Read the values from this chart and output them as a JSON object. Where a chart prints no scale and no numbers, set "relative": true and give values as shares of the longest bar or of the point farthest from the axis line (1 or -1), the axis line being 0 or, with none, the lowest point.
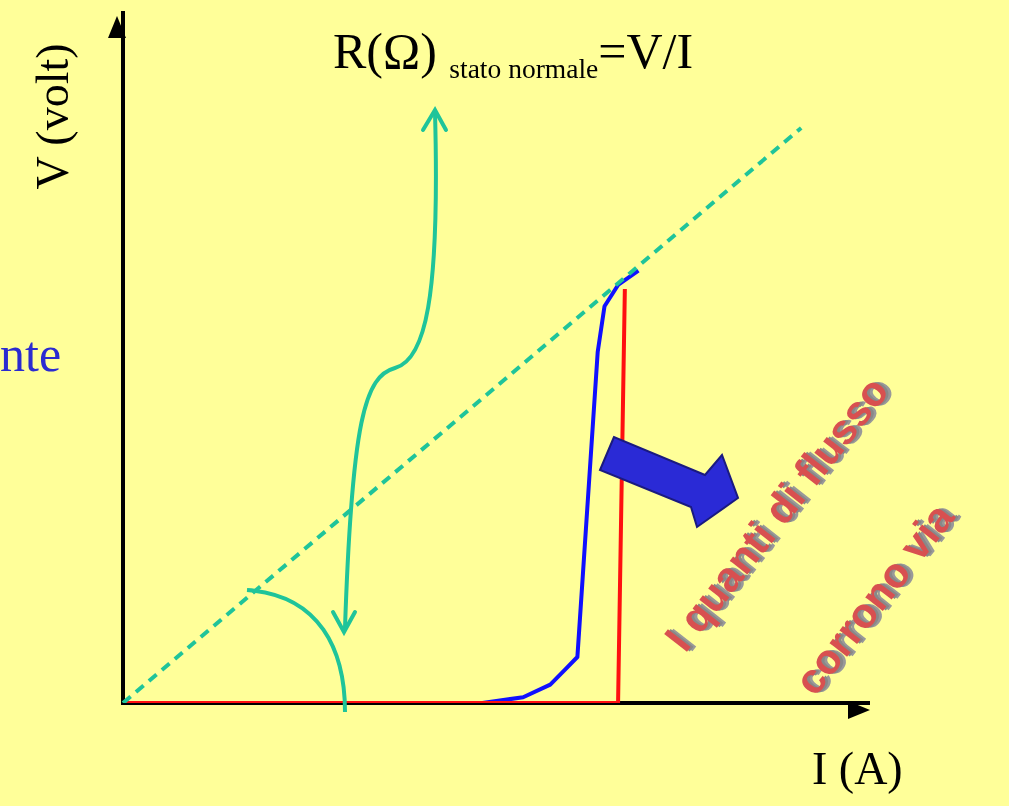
{
  "chart_data": {
    "type": "line",
    "relative": true,
    "xlabel": "I (A)",
    "ylabel": "V (volt)",
    "grid": false,
    "legend": false,
    "marker": "none",
    "annotations": [
      "R(Ω) $_{stato normale}$=V/I",
      "nte",
      "I quanti di flusso",
      "corrono via"
    ],
    "categories": [
      null,
      null,
      null,
      null,
      null,
      null,
      null,
      null,
      null,
      null,
      null,
      null,
      null,
      null,
      null,
      null,
      null,
      null,
      null,
      null,
      null,
      null,
      null,
      null,
      null,
      null,
      null,
      null,
      null,
      null,
      null,
      null,
      null,
      null,
      null,
      null,
      null,
      null,
      null,
      null,
      null,
      null,
      null,
      null,
      null,
      null,
      null,
      null,
      null,
      null,
      null,
      null,
      null,
      null,
      null,
      null,
      null,
      null,
      null,
      null,
      null,
      null,
      null,
      null,
      null,
      null,
      null,
      null,
      null,
      null,
      null,
      null,
      null,
      null,
      null,
      null,
      null,
      null,
      null,
      null,
      null,
      null,
      null,
      null,
      null,
      null,
      null,
      null,
      null,
      null,
      null,
      null,
      null,
      null,
      null,
      null,
      null,
      null,
      null,
      null,
      null,
      null,
      null,
      null,
      null,
      null,
      null,
      null,
      null,
      null,
      null
    ],
    "series": [
      {
        "color": "#1fc49a",
        "line_style": "dashed",
        "values": [
          0,
          null,
          null,
          null,
          null,
          null,
          null,
          null,
          null,
          null,
          null,
          null,
          null,
          null,
          null,
          null,
          null,
          null,
          null,
          null,
          null,
          null,
          null,
          null,
          null,
          null,
          null,
          null,
          null,
          null,
          null,
          null,
          null,
          null,
          null,
          null,
          null,
          null,
          null,
          null,
          null,
          null,
          null,
          null,
          null,
          null,
          null,
          null,
          null,
          null,
          null,
          null,
          null,
          null,
          null,
          null,
          null,
          null,
          null,
          null,
          null,
          null,
          null,
          null,
          null,
          null,
          null,
          null,
          null,
          null,
          null,
          null,
          null,
          null,
          null,
          null,
          null,
          null,
          null,
          null,
          null,
          null,
          null,
          null,
          null,
          null,
          null,
          null,
          null,
          null,
          null,
          null,
          null,
          null,
          null,
          null,
          null,
          null,
          null,
          null,
          1,
          null,
          null,
          null,
          null,
          null,
          null,
          null,
          null,
          null,
          null
        ]
      },
      {
        "color": "#ff1010",
        "line_style": "solid",
        "values": [
          0,
          null,
          null,
          null,
          null,
          null,
          null,
          null,
          null,
          null,
          null,
          null,
          null,
          null,
          null,
          null,
          null,
          null,
          null,
          null,
          null,
          null,
          null,
          null,
          null,
          null,
          null,
          null,
          null,
          null,
          null,
          null,
          null,
          null,
          null,
          null,
          null,
          null,
          null,
          null,
          null,
          null,
          null,
          null,
          null,
          null,
          null,
          null,
          null,
          null,
          null,
          null,
          null,
          null,
          null,
          null,
          null,
          null,
          null,
          null,
          null,
          null,
          null,
          null,
          null,
          null,
          null,
          null,
          null,
          null,
          null,
          null,
          null,
          0,
          0.72,
          null,
          null,
          null,
          null,
          null,
          null,
          null,
          null,
          null,
          null,
          null,
          null,
          null,
          null,
          null,
          null,
          null,
          null,
          null,
          null,
          null,
          null,
          null,
          null,
          null,
          null,
          null,
          null,
          null,
          null,
          null,
          null,
          null,
          null,
          null,
          null
        ]
      },
      {
        "color": "#1010ff",
        "line_style": "solid",
        "values": [
          null,
          null,
          null,
          null,
          null,
          null,
          null,
          null,
          null,
          null,
          null,
          null,
          null,
          null,
          null,
          null,
          null,
          null,
          null,
          null,
          null,
          null,
          null,
          null,
          null,
          null,
          null,
          null,
          null,
          null,
          null,
          null,
          null,
          null,
          null,
          null,
          null,
          null,
          null,
          null,
          null,
          null,
          null,
          null,
          null,
          null,
          null,
          null,
          null,
          null,
          null,
          null,
          null,
          0,
          null,
          null,
          null,
          null,
          null,
          0.01,
          null,
          null,
          null,
          0.032,
          null,
          0.056,
          null,
          0.08,
          null,
          null,
          0.611,
          0.69,
          null,
          0.727,
          null,
          null,
          0.752,
          null,
          null,
          null,
          null,
          null,
          null,
          null,
          null,
          null,
          null,
          null,
          null,
          null,
          null,
          null,
          null,
          null,
          null,
          null,
          null,
          null,
          null,
          null,
          null,
          null,
          null,
          null,
          null,
          null,
          null,
          null,
          null,
          null,
          null
        ]
      }
    ]
  }
}
